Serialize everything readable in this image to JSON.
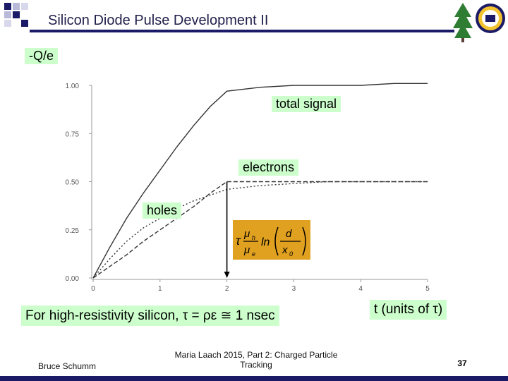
{
  "slide": {
    "title": "Silicon Diode Pulse Development II",
    "colors": {
      "accent": "#1a1a66",
      "label_bg": "#ccffcc",
      "formula_bg": "#e0a020"
    }
  },
  "labels": {
    "y_quantity": "-Q/e",
    "total": "total signal",
    "electrons": "electrons",
    "holes": "holes",
    "x_quantity": "t (units of τ)",
    "note": "For high-resistivity silicon, τ = ρε ≅ 1 nsec"
  },
  "formula": {
    "tau": "τ",
    "mu_h": "μ",
    "h": "h",
    "mu_e": "μ",
    "e": "e",
    "ln": "ln",
    "d": "d",
    "x": "x",
    "zero": "0"
  },
  "footer": {
    "author": "Bruce Schumm",
    "event_line1": "Maria Laach 2015, Part 2: Charged Particle",
    "event_line2": "Tracking",
    "page": "37"
  },
  "logo": {
    "icons": [
      "tree-icon",
      "university-seal-icon"
    ]
  },
  "chart_data": {
    "type": "line",
    "x": [
      0,
      0.25,
      0.5,
      0.75,
      1,
      1.25,
      1.5,
      1.75,
      2,
      2.5,
      3,
      3.5,
      4,
      4.5,
      5
    ],
    "xticks": [
      "0",
      "1",
      "2",
      "3",
      "4",
      "5"
    ],
    "yticks": [
      "0.00",
      "0.25",
      "0.50",
      "0.75",
      "1.00"
    ],
    "xlim": [
      0,
      5
    ],
    "ylim": [
      0,
      1
    ],
    "grid": false,
    "series": [
      {
        "name": "total signal",
        "style": "solid",
        "values": [
          0,
          0.16,
          0.31,
          0.44,
          0.56,
          0.68,
          0.79,
          0.89,
          0.97,
          0.99,
          1.0,
          1.0,
          1.0,
          1.01,
          1.01
        ]
      },
      {
        "name": "electrons",
        "style": "dashed",
        "values": [
          0,
          0.06,
          0.12,
          0.19,
          0.25,
          0.31,
          0.37,
          0.44,
          0.5,
          0.5,
          0.5,
          0.5,
          0.5,
          0.5,
          0.5
        ]
      },
      {
        "name": "holes",
        "style": "dotted",
        "values": [
          0,
          0.1,
          0.19,
          0.26,
          0.31,
          0.36,
          0.4,
          0.43,
          0.46,
          0.48,
          0.49,
          0.5,
          0.5,
          0.5,
          0.5
        ]
      }
    ],
    "annotation": {
      "arrow_at_x": 2
    }
  }
}
